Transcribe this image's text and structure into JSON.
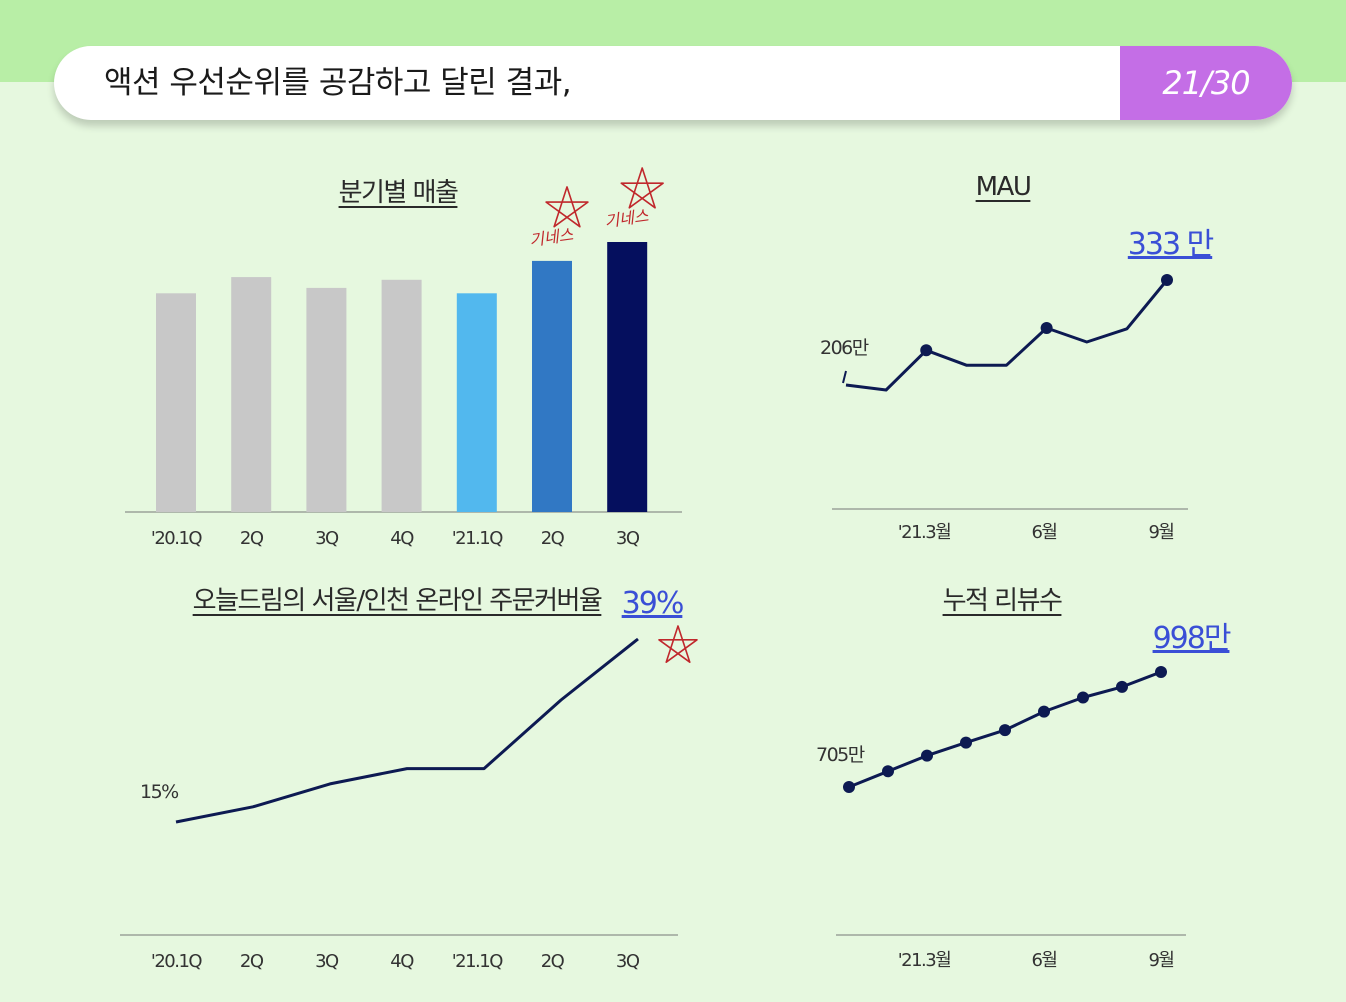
{
  "header": {
    "title": "액션 우선순위를 공감하고 달린 결과,",
    "page": "21/30"
  },
  "annotations": {
    "note": "기네스"
  },
  "colors": {
    "bar_gray": "#c8c8c8",
    "bar_light": "#52b8ee",
    "bar_mid": "#3178c4",
    "bar_dark": "#050f5e",
    "line": "#0d1a52",
    "callout": "#3a4fd6",
    "header_accent": "#c46ee6"
  },
  "chart_data": [
    {
      "type": "bar",
      "title": "분기별 매출",
      "categories": [
        "'20.1Q",
        "2Q",
        "3Q",
        "4Q",
        "'21.1Q",
        "2Q",
        "3Q"
      ],
      "values": [
        0.81,
        0.87,
        0.83,
        0.86,
        0.81,
        0.93,
        1.0
      ],
      "highlight_notes": [
        "",
        "",
        "",
        "",
        "",
        "기네스",
        "기네스"
      ]
    },
    {
      "type": "line",
      "title": "MAU",
      "x_labels": [
        "'21.3월",
        "6월",
        "9월"
      ],
      "values": [
        206,
        200,
        248,
        230,
        230,
        275,
        258,
        274,
        333
      ],
      "start_label": "206만",
      "end_label": "333 만"
    },
    {
      "type": "line",
      "title": "오늘드림의 서울/인천 온라인 주문커버율",
      "categories": [
        "'20.1Q",
        "2Q",
        "3Q",
        "4Q",
        "'21.1Q",
        "2Q",
        "3Q"
      ],
      "values": [
        15,
        17,
        20,
        22,
        22,
        31,
        39
      ],
      "start_label": "15%",
      "end_label": "39%"
    },
    {
      "type": "line",
      "title": "누적 리뷰수",
      "x_labels": [
        "'21.3월",
        "6월",
        "9월"
      ],
      "values": [
        705,
        745,
        785,
        818,
        850,
        897,
        933,
        960,
        998
      ],
      "start_label": "705만",
      "end_label": "998만"
    }
  ]
}
